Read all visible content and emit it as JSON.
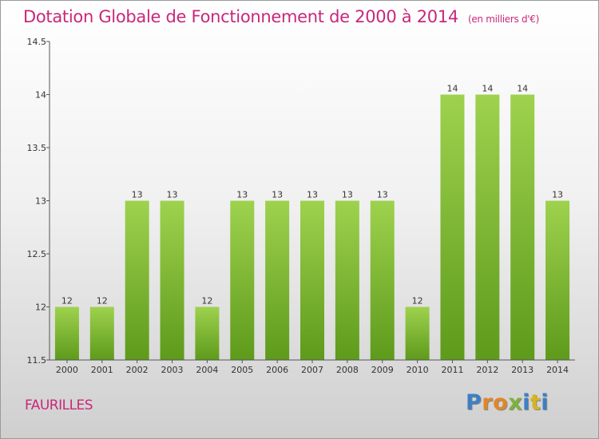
{
  "header": {
    "title": "Dotation Globale de Fonctionnement de 2000 à 2014",
    "subtitle": "(en milliers d'€)"
  },
  "commune": "FAURILLES",
  "logo": {
    "text": "Proxiti",
    "letter_colors": [
      "#3d7fc4",
      "#e0872a",
      "#e0872a",
      "#7bb33a",
      "#3d7fc4",
      "#d6b323",
      "#3d7fc4"
    ]
  },
  "chart_data": {
    "type": "bar",
    "categories": [
      "2000",
      "2001",
      "2002",
      "2003",
      "2004",
      "2005",
      "2006",
      "2007",
      "2008",
      "2009",
      "2010",
      "2011",
      "2012",
      "2013",
      "2014"
    ],
    "values": [
      12,
      12,
      13,
      13,
      12,
      13,
      13,
      13,
      13,
      13,
      12,
      14,
      14,
      14,
      13
    ],
    "data_labels": [
      "12",
      "12",
      "13",
      "13",
      "12",
      "13",
      "13",
      "13",
      "13",
      "13",
      "12",
      "14",
      "14",
      "14",
      "13"
    ],
    "ylim": [
      11.5,
      14.5
    ],
    "yticks": [
      11.5,
      12,
      12.5,
      13,
      13.5,
      14,
      14.5
    ],
    "ytick_labels": [
      "11.5",
      "12",
      "12.5",
      "13",
      "13.5",
      "14",
      "14.5"
    ],
    "grid": false,
    "bar_color_top": "#9ed24e",
    "bar_color_bottom": "#5e9a1b"
  }
}
